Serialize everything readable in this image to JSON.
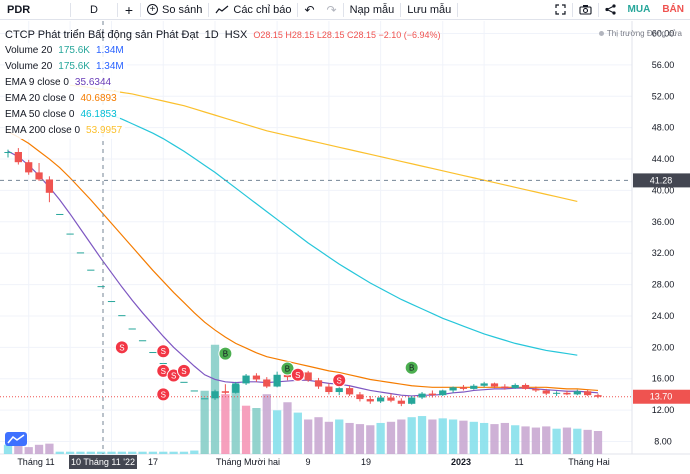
{
  "toolbar": {
    "symbol": "PDR",
    "interval": "D",
    "compare_label": "So sánh",
    "indicators_label": "Các chỉ báo",
    "load_template_label": "Nạp mẫu",
    "save_template_label": "Lưu mẫu",
    "buy_label": "MUA",
    "sell_label": "BÁN"
  },
  "legend": {
    "title": "CTCP Phát triển Bất động sản Phát Đạt",
    "interval": "1D",
    "exchange": "HSX",
    "o": "O28.15",
    "h": "H28.15",
    "l": "L28.15",
    "c": "C28.15",
    "change": "−2.10 (−6.94%)",
    "rows": [
      {
        "name": "Volume 20",
        "v1": "175.6K",
        "v2": "1.34M",
        "color1": "#26a69a",
        "color2": "#2962ff"
      },
      {
        "name": "Volume 20",
        "v1": "175.6K",
        "v2": "1.34M",
        "color1": "#26a69a",
        "color2": "#2962ff"
      },
      {
        "name": "EMA 9 close 0",
        "v1": "35.6344",
        "color1": "#673ab7"
      },
      {
        "name": "EMA 20 close 0",
        "v1": "40.6893",
        "color1": "#f57c00"
      },
      {
        "name": "EMA 50 close 0",
        "v1": "46.1853",
        "color1": "#00bcd4"
      },
      {
        "name": "EMA 200 close 0",
        "v1": "53.9957",
        "color1": "#fbc02d"
      }
    ]
  },
  "market_status": "Thị trường Đóng cửa",
  "colors": {
    "up": "#26a69a",
    "down": "#ef5350",
    "ema9": "#7e57c2",
    "ema20": "#f57c00",
    "ema50": "#26c6da",
    "ema200": "#fbc02d",
    "vol_up": "#80deea",
    "vol_down": "#c5a3cf"
  },
  "chart_data": {
    "type": "candlestick",
    "y_axis_ticks": [
      "60.00",
      "56.00",
      "52.00",
      "48.00",
      "44.00",
      "40.00",
      "36.00",
      "32.00",
      "28.00",
      "24.00",
      "20.00",
      "16.00",
      "12.00",
      "8.00"
    ],
    "x_axis_ticks": [
      "Tháng 11",
      "10 Tháng 11 '22",
      "17",
      "Tháng Mười hai",
      "9",
      "19",
      "2023",
      "11",
      "Tháng Hai"
    ],
    "crosshair_price": "41.28",
    "last_price": "13.70",
    "ylim": [
      6.4,
      61.6
    ],
    "candles": [
      [
        44.8,
        45.2,
        44.2,
        44.9
      ],
      [
        44.9,
        45.4,
        43.3,
        43.6
      ],
      [
        43.6,
        43.9,
        42.0,
        42.3
      ],
      [
        42.3,
        43.5,
        41.2,
        41.4
      ],
      [
        41.4,
        41.8,
        38.5,
        39.7
      ],
      [
        37.0,
        37.0,
        37.0,
        37.0
      ],
      [
        34.5,
        34.5,
        34.5,
        34.5
      ],
      [
        32.1,
        32.1,
        32.1,
        32.1
      ],
      [
        29.9,
        29.9,
        29.9,
        29.9
      ],
      [
        27.8,
        27.8,
        27.8,
        27.8
      ],
      [
        25.9,
        25.9,
        25.9,
        25.9
      ],
      [
        24.1,
        24.1,
        24.1,
        24.1
      ],
      [
        22.4,
        22.4,
        22.4,
        22.4
      ],
      [
        20.9,
        20.9,
        20.9,
        20.9
      ],
      [
        19.4,
        19.4,
        19.4,
        19.4
      ],
      [
        18.0,
        18.0,
        18.0,
        18.0
      ],
      [
        16.8,
        16.8,
        16.8,
        16.8
      ],
      [
        15.6,
        15.6,
        15.6,
        15.6
      ],
      [
        14.5,
        14.5,
        14.5,
        14.5
      ],
      [
        13.5,
        13.5,
        13.5,
        13.5
      ],
      [
        13.5,
        14.6,
        13.3,
        14.4
      ],
      [
        14.4,
        15.3,
        14.0,
        14.2
      ],
      [
        14.2,
        15.6,
        14.1,
        15.4
      ],
      [
        15.4,
        16.6,
        15.2,
        16.4
      ],
      [
        16.4,
        16.7,
        15.6,
        15.9
      ],
      [
        15.9,
        16.2,
        14.8,
        15.0
      ],
      [
        15.0,
        16.9,
        14.9,
        16.5
      ],
      [
        16.5,
        17.1,
        15.8,
        16.2
      ],
      [
        16.2,
        17.3,
        16.0,
        16.8
      ],
      [
        16.8,
        17.0,
        15.6,
        15.8
      ],
      [
        15.8,
        16.1,
        14.7,
        15.0
      ],
      [
        15.0,
        15.4,
        14.0,
        14.3
      ],
      [
        14.3,
        15.2,
        13.9,
        14.8
      ],
      [
        14.8,
        15.1,
        13.8,
        14.0
      ],
      [
        14.0,
        14.3,
        13.1,
        13.4
      ],
      [
        13.4,
        13.8,
        12.8,
        13.1
      ],
      [
        13.1,
        13.9,
        12.9,
        13.6
      ],
      [
        13.6,
        14.1,
        13.0,
        13.2
      ],
      [
        13.2,
        13.5,
        12.5,
        12.8
      ],
      [
        12.8,
        13.8,
        12.7,
        13.6
      ],
      [
        13.6,
        14.3,
        13.4,
        14.1
      ],
      [
        14.1,
        14.5,
        13.6,
        13.9
      ],
      [
        13.9,
        14.6,
        13.8,
        14.5
      ],
      [
        14.5,
        15.0,
        14.2,
        14.9
      ],
      [
        14.9,
        15.2,
        14.5,
        14.7
      ],
      [
        14.7,
        15.3,
        14.6,
        15.1
      ],
      [
        15.1,
        15.6,
        14.9,
        15.4
      ],
      [
        15.4,
        15.5,
        14.8,
        15.0
      ],
      [
        15.0,
        15.3,
        14.6,
        14.8
      ],
      [
        14.8,
        15.4,
        14.7,
        15.2
      ],
      [
        15.2,
        15.4,
        14.6,
        14.7
      ],
      [
        14.7,
        15.0,
        14.3,
        14.5
      ],
      [
        14.5,
        14.7,
        13.9,
        14.1
      ],
      [
        14.1,
        14.4,
        13.8,
        14.2
      ],
      [
        14.2,
        14.5,
        13.9,
        14.0
      ],
      [
        14.0,
        14.6,
        13.9,
        14.4
      ],
      [
        14.4,
        14.6,
        13.8,
        13.9
      ],
      [
        13.9,
        14.1,
        13.5,
        13.7
      ]
    ],
    "volume_rel": [
      0.08,
      0.07,
      0.06,
      0.08,
      0.09,
      0.02,
      0.02,
      0.02,
      0.02,
      0.02,
      0.02,
      0.02,
      0.02,
      0.02,
      0.02,
      0.02,
      0.02,
      0.02,
      0.03,
      0.55,
      0.95,
      0.52,
      0.6,
      0.42,
      0.4,
      0.52,
      0.38,
      0.45,
      0.36,
      0.3,
      0.32,
      0.28,
      0.3,
      0.27,
      0.26,
      0.25,
      0.27,
      0.28,
      0.3,
      0.32,
      0.33,
      0.3,
      0.31,
      0.3,
      0.29,
      0.28,
      0.27,
      0.26,
      0.27,
      0.25,
      0.24,
      0.23,
      0.24,
      0.22,
      0.23,
      0.22,
      0.21,
      0.2
    ],
    "ema9": [
      45.0,
      44.3,
      43.2,
      41.9,
      40.4,
      38.8,
      37.0,
      35.1,
      33.2,
      31.3,
      29.5,
      27.7,
      26.0,
      24.4,
      22.9,
      21.4,
      20.0,
      18.8,
      17.6,
      16.5,
      15.9,
      15.6,
      15.5,
      15.6,
      15.6,
      15.5,
      15.6,
      15.7,
      15.8,
      15.8,
      15.6,
      15.4,
      15.3,
      15.1,
      14.8,
      14.5,
      14.3,
      14.1,
      13.9,
      13.8,
      13.9,
      13.9,
      14.0,
      14.2,
      14.3,
      14.5,
      14.6,
      14.7,
      14.7,
      14.8,
      14.8,
      14.7,
      14.6,
      14.5,
      14.4,
      14.4,
      14.3,
      14.2
    ],
    "ema20": [
      47.5,
      46.8,
      46.0,
      45.0,
      44.0,
      42.9,
      41.6,
      40.2,
      38.8,
      37.3,
      35.8,
      34.3,
      32.8,
      31.3,
      29.8,
      28.4,
      27.0,
      25.7,
      24.4,
      23.2,
      22.2,
      21.3,
      20.5,
      19.9,
      19.3,
      18.8,
      18.5,
      18.2,
      17.9,
      17.6,
      17.3,
      17.0,
      16.8,
      16.5,
      16.2,
      15.9,
      15.7,
      15.5,
      15.3,
      15.1,
      15.0,
      14.9,
      14.9,
      14.9,
      14.9,
      14.9,
      14.9,
      14.9,
      14.9,
      14.9,
      14.9,
      14.9,
      14.9,
      14.8,
      14.7,
      14.7,
      14.6,
      14.5
    ],
    "ema50": [
      49.6,
      49.1,
      48.5,
      47.9,
      47.3,
      46.6,
      45.8,
      45.0,
      44.1,
      43.2,
      42.3,
      41.3,
      40.3,
      39.3,
      38.3,
      37.3,
      36.3,
      35.3,
      34.3,
      33.3,
      32.4,
      31.5,
      30.6,
      29.8,
      29.0,
      28.2,
      27.5,
      26.8,
      26.1,
      25.5,
      24.9,
      24.3,
      23.7,
      23.2,
      22.7,
      22.2,
      21.7,
      21.3,
      20.9,
      20.5,
      20.2,
      19.9,
      19.6,
      19.4,
      19.2,
      19.0
    ],
    "ema200": [
      53.4,
      53.3,
      53.1,
      52.9,
      52.7,
      52.5,
      52.3,
      52.0,
      51.7,
      51.4,
      51.1,
      50.8,
      50.4,
      50.0,
      49.6,
      49.2,
      48.8,
      48.4,
      48.0,
      47.6,
      47.3,
      47.0,
      46.7,
      46.4,
      46.1,
      45.8,
      45.5,
      45.2,
      44.9,
      44.6,
      44.3,
      44.0,
      43.7,
      43.4,
      43.1,
      42.8,
      42.5,
      42.2,
      41.9,
      41.6,
      41.3,
      41.0,
      40.7,
      40.4,
      40.1,
      39.8,
      39.5,
      39.2,
      38.9,
      38.6
    ],
    "markers": [
      {
        "label": "S",
        "idx": 11,
        "price": 20.0,
        "type": "sell"
      },
      {
        "label": "S",
        "idx": 15,
        "price": 19.5,
        "type": "sell"
      },
      {
        "label": "S",
        "idx": 15,
        "price": 17.0,
        "type": "sell"
      },
      {
        "label": "S",
        "idx": 16,
        "price": 16.4,
        "type": "sell"
      },
      {
        "label": "S",
        "idx": 17,
        "price": 17.0,
        "type": "sell"
      },
      {
        "label": "S",
        "idx": 15,
        "price": 14.0,
        "type": "sell"
      },
      {
        "label": "B",
        "idx": 21,
        "price": 19.2,
        "type": "buy"
      },
      {
        "label": "B",
        "idx": 27,
        "price": 17.3,
        "type": "buy"
      },
      {
        "label": "S",
        "idx": 28,
        "price": 16.5,
        "type": "sell"
      },
      {
        "label": "S",
        "idx": 32,
        "price": 15.8,
        "type": "sell"
      },
      {
        "label": "B",
        "idx": 39,
        "price": 17.4,
        "type": "buy"
      }
    ]
  }
}
